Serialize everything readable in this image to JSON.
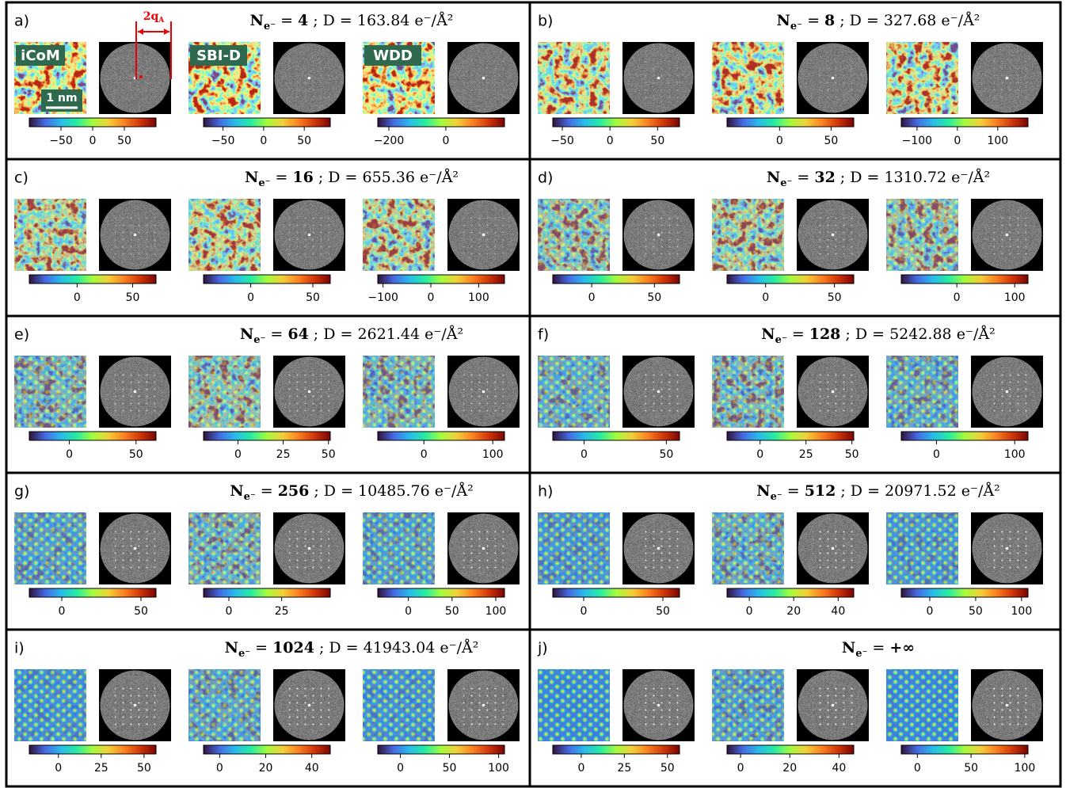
{
  "annotations": {
    "methods": [
      "iCoM",
      "SBI-D",
      "WDD"
    ],
    "scalebar": "1 nm",
    "freq": "2q",
    "freq_sub": "A"
  },
  "panels": [
    {
      "label": "a)",
      "title": {
        "symbol": "N",
        "sub": "e⁻",
        "rel": "=",
        "ne": "4",
        "rest": "; D = 163.84 e⁻/Å²"
      },
      "colorbars": [
        {
          "lim": [
            -100,
            100
          ],
          "ticks": [
            {
              "value": -50,
              "label": "−50"
            },
            0,
            50
          ]
        },
        {
          "lim": [
            -74,
            82
          ],
          "ticks": [
            {
              "value": -50,
              "label": "−50"
            },
            0,
            50
          ]
        },
        {
          "lim": [
            -239,
            206
          ],
          "ticks": [
            {
              "value": -200,
              "label": "−200"
            },
            0
          ]
        }
      ]
    },
    {
      "label": "b)",
      "title": {
        "symbol": "N",
        "sub": "e⁻",
        "rel": "=",
        "ne": "8",
        "rest": "; D = 327.68 e⁻/Å²"
      },
      "colorbars": [
        {
          "lim": [
            -60,
            73
          ],
          "ticks": [
            {
              "value": -50,
              "label": "−50"
            },
            0,
            50
          ]
        },
        {
          "lim": [
            -51,
            72
          ],
          "ticks": [
            0,
            50
          ]
        },
        {
          "lim": [
            -139,
            175
          ],
          "ticks": [
            {
              "value": -100,
              "label": "−100"
            },
            0,
            100
          ]
        }
      ]
    },
    {
      "label": "c)",
      "title": {
        "symbol": "N",
        "sub": "e⁻",
        "rel": "=",
        "ne": "16",
        "rest": "; D = 655.36 e⁻/Å²"
      },
      "colorbars": [
        {
          "lim": [
            -43,
            71
          ],
          "ticks": [
            0,
            50
          ]
        },
        {
          "lim": [
            -38,
            64
          ],
          "ticks": [
            0,
            50
          ]
        },
        {
          "lim": [
            -111,
            154
          ],
          "ticks": [
            {
              "value": -100,
              "label": "−100"
            },
            0,
            100
          ]
        }
      ]
    },
    {
      "label": "d)",
      "title": {
        "symbol": "N",
        "sub": "e⁻",
        "rel": "=",
        "ne": "32",
        "rest": "; D = 1310.72 e⁻/Å²"
      },
      "colorbars": [
        {
          "lim": [
            -31,
            70
          ],
          "ticks": [
            0,
            50
          ]
        },
        {
          "lim": [
            -28,
            64
          ],
          "ticks": [
            0,
            50
          ]
        },
        {
          "lim": [
            -96,
            123
          ],
          "ticks": [
            0,
            100
          ]
        }
      ]
    },
    {
      "label": "e)",
      "title": {
        "symbol": "N",
        "sub": "e⁻",
        "rel": "=",
        "ne": "64",
        "rest": "; D = 2621.44 e⁻/Å²"
      },
      "colorbars": [
        {
          "lim": [
            -30,
            65
          ],
          "ticks": [
            0,
            50
          ]
        },
        {
          "lim": [
            -19,
            51
          ],
          "ticks": [
            0,
            25,
            50
          ]
        },
        {
          "lim": [
            -67,
            117
          ],
          "ticks": [
            0,
            100
          ]
        }
      ]
    },
    {
      "label": "f)",
      "title": {
        "symbol": "N",
        "sub": "e⁻",
        "rel": "=",
        "ne": "128",
        "rest": "; D = 5242.88 e⁻/Å²"
      },
      "colorbars": [
        {
          "lim": [
            -19,
            58
          ],
          "ticks": [
            0,
            50
          ]
        },
        {
          "lim": [
            -18,
            51
          ],
          "ticks": [
            0,
            25,
            50
          ]
        },
        {
          "lim": [
            -45,
            117
          ],
          "ticks": [
            0,
            100
          ]
        }
      ]
    },
    {
      "label": "g)",
      "title": {
        "symbol": "N",
        "sub": "e⁻",
        "rel": "=",
        "ne": "256",
        "rest": "; D = 10485.76 e⁻/Å²"
      },
      "colorbars": [
        {
          "lim": [
            -20.5,
            59.5
          ],
          "ticks": [
            0,
            50
          ]
        },
        {
          "lim": [
            -12,
            48
          ],
          "ticks": [
            0,
            25
          ]
        },
        {
          "lim": [
            -35,
            110
          ],
          "ticks": [
            0,
            50,
            100
          ]
        }
      ]
    },
    {
      "label": "h)",
      "title": {
        "symbol": "N",
        "sub": "e⁻",
        "rel": "=",
        "ne": "512",
        "rest": "; D = 20971.52 e⁻/Å²"
      },
      "colorbars": [
        {
          "lim": [
            -19.5,
            60.5
          ],
          "ticks": [
            0,
            50
          ]
        },
        {
          "lim": [
            -10,
            47
          ],
          "ticks": [
            0,
            20,
            40
          ]
        },
        {
          "lim": [
            -31,
            107
          ],
          "ticks": [
            0,
            50,
            100
          ]
        }
      ]
    },
    {
      "label": "i)",
      "title": {
        "symbol": "N",
        "sub": "e⁻",
        "rel": "=",
        "ne": "1024",
        "rest": "; D = 41943.04 e⁻/Å²"
      },
      "colorbars": [
        {
          "lim": [
            -17,
            57
          ],
          "ticks": [
            0,
            25,
            50
          ]
        },
        {
          "lim": [
            -7,
            48
          ],
          "ticks": [
            0,
            20,
            40
          ]
        },
        {
          "lim": [
            -23,
            106
          ],
          "ticks": [
            0,
            50,
            100
          ]
        }
      ]
    },
    {
      "label": "j)",
      "title": {
        "symbol": "N",
        "sub": "e⁻",
        "rel": "=",
        "ne": "+∞"
      },
      "colorbars": [
        {
          "lim": [
            -16.5,
            57
          ],
          "ticks": [
            0,
            25,
            50
          ]
        },
        {
          "lim": [
            -5.5,
            46
          ],
          "ticks": [
            0,
            20,
            40
          ]
        },
        {
          "lim": [
            -15,
            103
          ],
          "ticks": [
            0,
            50,
            100
          ]
        }
      ]
    }
  ]
}
